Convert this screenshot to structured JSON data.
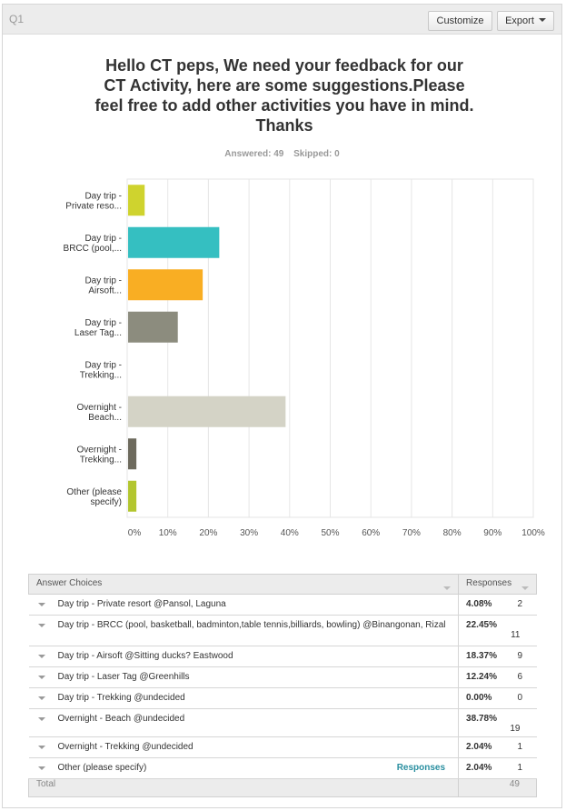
{
  "question": {
    "number": "Q1",
    "title": "Hello CT peps, We need your feedback for our CT Activity, here are some suggestions.Please feel free to add other activities you have in mind. Thanks",
    "answered_label": "Answered: 49",
    "skipped_label": "Skipped: 0"
  },
  "toolbar": {
    "customize_label": "Customize",
    "export_label": "Export"
  },
  "chart_data": {
    "type": "bar",
    "orientation": "horizontal",
    "categories": [
      [
        "Day trip -",
        "Private reso..."
      ],
      [
        "Day trip -",
        "BRCC (pool,..."
      ],
      [
        "Day trip -",
        "Airsoft..."
      ],
      [
        "Day trip -",
        "Laser Tag..."
      ],
      [
        "Day trip -",
        "Trekking..."
      ],
      [
        "Overnight -",
        "Beach..."
      ],
      [
        "Overnight -",
        "Trekking..."
      ],
      [
        "Other (please",
        "specify)"
      ]
    ],
    "values": [
      4.08,
      22.45,
      18.37,
      12.24,
      0.0,
      38.78,
      2.04,
      2.04
    ],
    "colors": [
      "#cfd32e",
      "#35bfc1",
      "#f9ae23",
      "#8c8c7e",
      "#cccccc",
      "#d4d3c6",
      "#6d6a5d",
      "#b3c62f"
    ],
    "xlim": [
      0,
      100
    ],
    "xticks": [
      "0%",
      "10%",
      "20%",
      "30%",
      "40%",
      "50%",
      "60%",
      "70%",
      "80%",
      "90%",
      "100%"
    ],
    "grid": true,
    "title": "",
    "xlabel": "",
    "ylabel": ""
  },
  "table": {
    "headers": {
      "choices": "Answer Choices",
      "responses": "Responses"
    },
    "rows": [
      {
        "label": "Day trip - Private resort @Pansol, Laguna",
        "percent": "4.08%",
        "count": "2"
      },
      {
        "label": "Day trip - BRCC (pool, basketball, badminton,table tennis,billiards, bowling) @Binangonan, Rizal",
        "percent": "22.45%",
        "count": "11"
      },
      {
        "label": "Day trip - Airsoft @Sitting ducks? Eastwood",
        "percent": "18.37%",
        "count": "9"
      },
      {
        "label": "Day trip - Laser Tag @Greenhills",
        "percent": "12.24%",
        "count": "6"
      },
      {
        "label": "Day trip - Trekking @undecided",
        "percent": "0.00%",
        "count": "0"
      },
      {
        "label": "Overnight - Beach @undecided",
        "percent": "38.78%",
        "count": "19"
      },
      {
        "label": "Overnight - Trekking @undecided",
        "percent": "2.04%",
        "count": "1"
      },
      {
        "label": "Other (please specify)",
        "percent": "2.04%",
        "count": "1",
        "link": "Responses"
      }
    ],
    "total_label": "Total",
    "total_count": "49"
  }
}
